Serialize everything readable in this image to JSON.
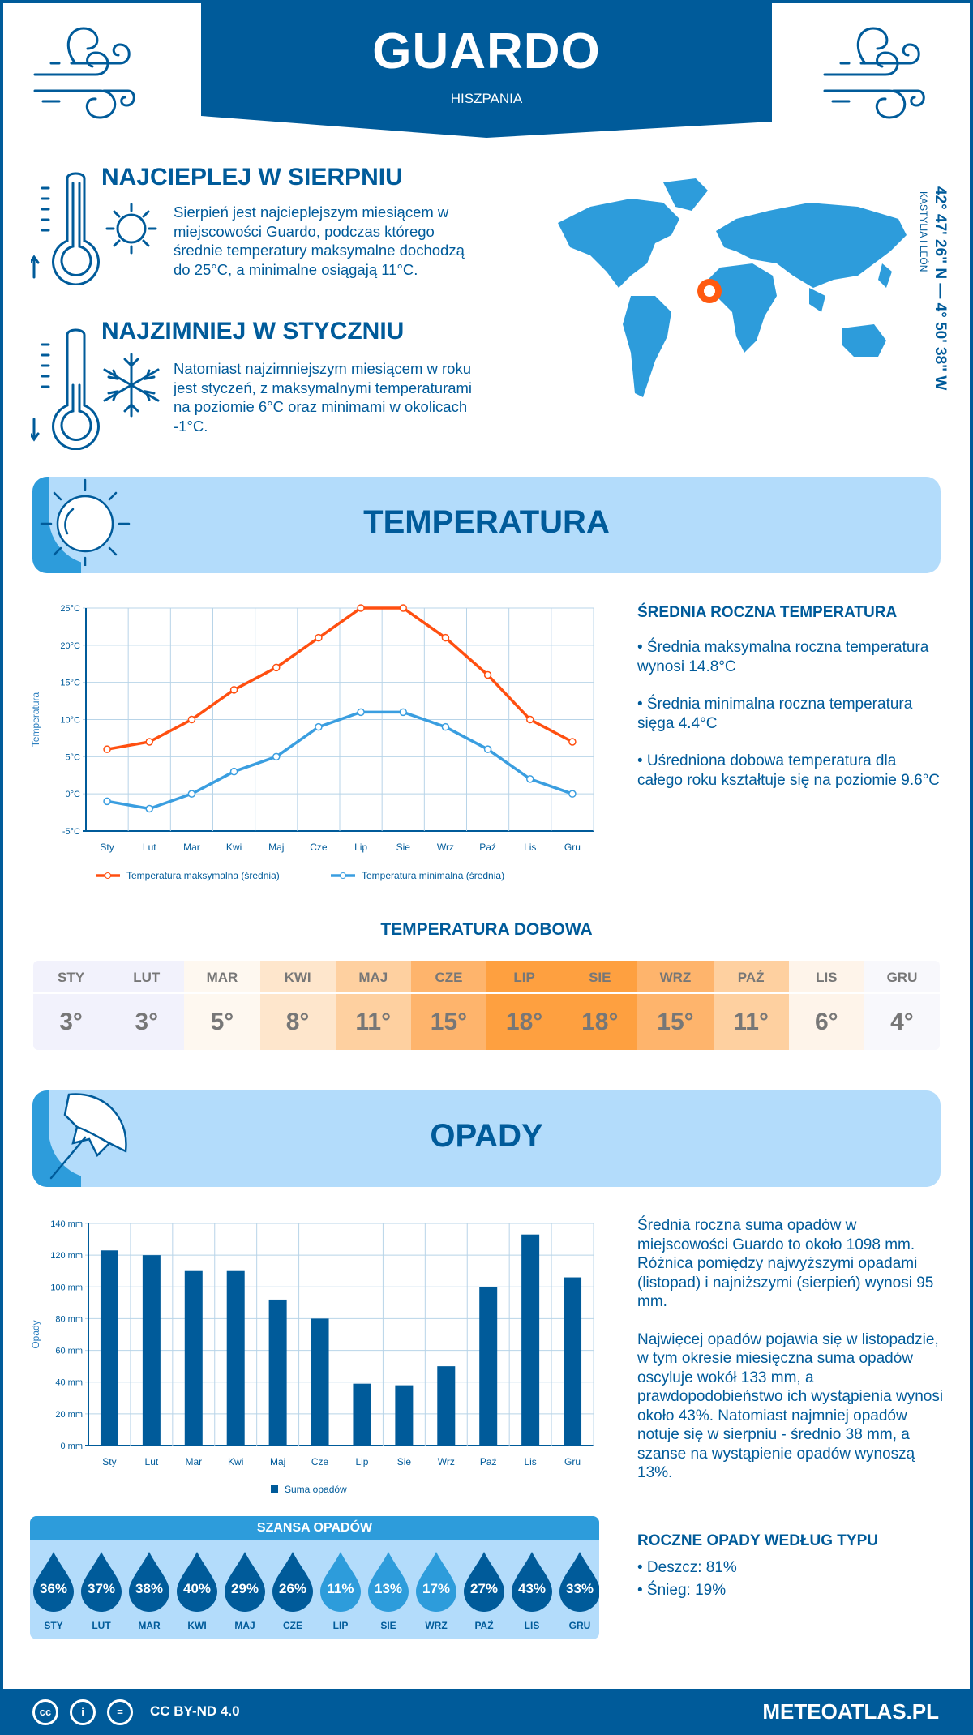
{
  "header": {
    "title": "GUARDO",
    "country": "HISZPANIA",
    "brand_color": "#005b9a"
  },
  "coordinates": {
    "text": "42° 47' 26\" N — 4° 50' 38\" W",
    "region": "KASTYLIA I LEÓN"
  },
  "warmest": {
    "title": "NAJCIEPLEJ W SIERPNIU",
    "lines": [
      "Sierpień jest najcieplejszym miesiącem w",
      "miejscowości Guardo, podczas którego",
      "średnie temperatury maksymalne dochodzą",
      "do 25°C, a minimalne osiągają 11°C."
    ]
  },
  "coldest": {
    "title": "NAJZIMNIEJ W STYCZNIU",
    "lines": [
      "Natomiast najzimniejszym miesiącem w roku",
      "jest styczeń, z maksymalnymi temperaturami",
      "na poziomie 6°C oraz minimami w okolicach",
      "-1°C."
    ]
  },
  "temperature_section": {
    "title": "TEMPERATURA"
  },
  "temp_summary": {
    "heading": "ŚREDNIA ROCZNA TEMPERATURA",
    "bullets": [
      "• Średnia maksymalna roczna temperatura wynosi 14.8°C",
      "• Średnia minimalna roczna temperatura sięga 4.4°C",
      "• Uśredniona dobowa temperatura dla całego roku kształtuje się na poziomie 9.6°C"
    ]
  },
  "daily_temp": {
    "heading": "TEMPERATURA DOBOWA",
    "months": [
      "STY",
      "LUT",
      "MAR",
      "KWI",
      "MAJ",
      "CZE",
      "LIP",
      "SIE",
      "WRZ",
      "PAŹ",
      "LIS",
      "GRU"
    ],
    "values": [
      "3°",
      "3°",
      "5°",
      "8°",
      "11°",
      "15°",
      "18°",
      "18°",
      "15°",
      "11°",
      "6°",
      "4°"
    ],
    "colors": [
      "#f2f2fc",
      "#f2f2fc",
      "#fef8f0",
      "#fee6cc",
      "#fed0a0",
      "#feb46c",
      "#fea040",
      "#fea040",
      "#feb46c",
      "#fed0a0",
      "#fef4ea",
      "#f8f8fc"
    ]
  },
  "precip_section": {
    "title": "OPADY"
  },
  "precip_summary": {
    "paragraphs": [
      "Średnia roczna suma opadów w miejscowości Guardo to około 1098 mm. Różnica pomiędzy najwyższymi opadami (listopad) i najniższymi (sierpień) wynosi 95 mm.",
      "Najwięcej opadów pojawia się w listopadzie, w tym okresie miesięczna suma opadów oscyluje wokół 133 mm, a prawdopodobieństwo ich wystąpienia wynosi około 43%. Natomiast najmniej opadów notuje się w sierpniu - średnio 38 mm, a szanse na wystąpienie opadów wynoszą 13%."
    ],
    "type_heading": "ROCZNE OPADY WEDŁUG TYPU",
    "types": [
      "• Deszcz: 81%",
      "• Śnieg: 19%"
    ]
  },
  "rain_chance": {
    "heading": "SZANSA OPADÓW",
    "months": [
      "STY",
      "LUT",
      "MAR",
      "KWI",
      "MAJ",
      "CZE",
      "LIP",
      "SIE",
      "WRZ",
      "PAŹ",
      "LIS",
      "GRU"
    ],
    "values": [
      "36%",
      "37%",
      "38%",
      "40%",
      "29%",
      "26%",
      "11%",
      "13%",
      "17%",
      "27%",
      "43%",
      "33%"
    ],
    "dark_color": "#005b9a",
    "light_color": "#2d9cdb"
  },
  "footer": {
    "license": "CC BY-ND 4.0",
    "site": "METEOATLAS.PL"
  },
  "chart_data": [
    {
      "type": "line",
      "categories": [
        "Sty",
        "Lut",
        "Mar",
        "Kwi",
        "Maj",
        "Cze",
        "Lip",
        "Sie",
        "Wrz",
        "Paź",
        "Lis",
        "Gru"
      ],
      "series": [
        {
          "name": "Temperatura maksymalna (średnia)",
          "values": [
            6,
            7,
            10,
            14,
            17,
            21,
            25,
            25,
            21,
            16,
            10,
            7
          ],
          "color": "#ff4f10"
        },
        {
          "name": "Temperatura minimalna (średnia)",
          "values": [
            -1,
            -2,
            0,
            3,
            5,
            9,
            11,
            11,
            9,
            6,
            2,
            0
          ],
          "color": "#3a9ee0"
        }
      ],
      "ylabel": "Temperatura",
      "ylim": [
        -5,
        25
      ],
      "yticks": [
        "-5°C",
        "0°C",
        "5°C",
        "10°C",
        "15°C",
        "20°C",
        "25°C"
      ],
      "grid": true,
      "legend": "bottom"
    },
    {
      "type": "bar",
      "categories": [
        "Sty",
        "Lut",
        "Mar",
        "Kwi",
        "Maj",
        "Cze",
        "Lip",
        "Sie",
        "Wrz",
        "Paź",
        "Lis",
        "Gru"
      ],
      "series": [
        {
          "name": "Suma opadów",
          "values": [
            123,
            120,
            110,
            110,
            92,
            80,
            39,
            38,
            50,
            100,
            133,
            106
          ],
          "color": "#005b9a"
        }
      ],
      "ylabel": "Opady",
      "ylim": [
        0,
        140
      ],
      "yticks": [
        "0 mm",
        "20 mm",
        "40 mm",
        "60 mm",
        "80 mm",
        "100 mm",
        "120 mm",
        "140 mm"
      ],
      "grid": true,
      "legend": "bottom"
    }
  ]
}
